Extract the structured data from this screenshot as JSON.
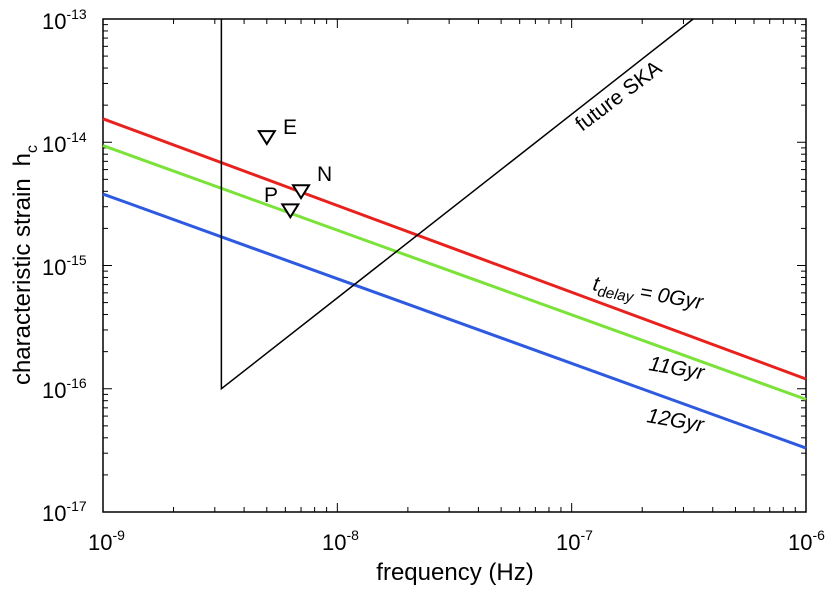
{
  "chart_data": {
    "type": "line",
    "xscale": "log",
    "yscale": "log",
    "xlim": [
      1e-09,
      1e-06
    ],
    "ylim": [
      1e-17,
      1e-13
    ],
    "xlabel": "frequency (Hz)",
    "ylabel": "characteristic strain",
    "ylabel_symbol": "h",
    "ylabel_symbol_sub": "c",
    "x_ticks": [
      {
        "value": 1e-09,
        "base": "10",
        "exp": "-9"
      },
      {
        "value": 1e-08,
        "base": "10",
        "exp": "-8"
      },
      {
        "value": 1e-07,
        "base": "10",
        "exp": "-7"
      },
      {
        "value": 1e-06,
        "base": "10",
        "exp": "-6"
      }
    ],
    "y_ticks": [
      {
        "value": 1e-17,
        "base": "10",
        "exp": "-17"
      },
      {
        "value": 1e-16,
        "base": "10",
        "exp": "-16"
      },
      {
        "value": 1e-15,
        "base": "10",
        "exp": "-15"
      },
      {
        "value": 1e-14,
        "base": "10",
        "exp": "-14"
      },
      {
        "value": 1e-13,
        "base": "10",
        "exp": "-13"
      }
    ],
    "series": [
      {
        "name": "t_delay = 0Gyr",
        "color": "#e8211d",
        "x": [
          1e-09,
          1e-06
        ],
        "y": [
          1.55e-14,
          1.2e-16
        ]
      },
      {
        "name": "11Gyr",
        "color": "#7be23a",
        "x": [
          1e-09,
          1e-06
        ],
        "y": [
          9.4e-15,
          8.2e-17
        ]
      },
      {
        "name": "12Gyr",
        "color": "#2e5ae0",
        "x": [
          1e-09,
          1e-06
        ],
        "y": [
          3.8e-15,
          3.3e-17
        ]
      }
    ],
    "sensitivity_curve": {
      "name": "future SKA",
      "color": "#000000",
      "x": [
        3.2e-09,
        3.2e-09,
        3.3e-07
      ],
      "y": [
        1e-13,
        1e-16,
        1e-13
      ]
    },
    "markers": [
      {
        "label": "E",
        "x": 5e-09,
        "y": 1.1e-14
      },
      {
        "label": "N",
        "x": 7e-09,
        "y": 4e-15
      },
      {
        "label": "P",
        "x": 6.3e-09,
        "y": 2.8e-15
      }
    ],
    "annotations": {
      "t0": {
        "t": "t",
        "sub": "delay",
        "rest": " = 0Gyr"
      },
      "t11": "11Gyr",
      "t12": "12Gyr",
      "ska": "future SKA"
    }
  }
}
